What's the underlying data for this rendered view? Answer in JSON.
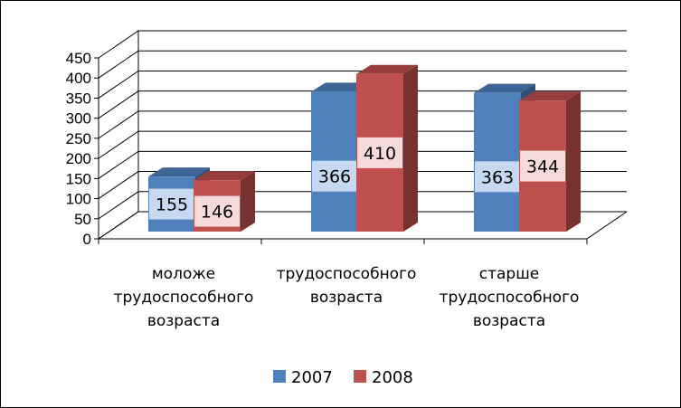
{
  "chart_data": {
    "type": "bar",
    "categories": [
      [
        "моложе",
        "трудоспособного",
        "возраста"
      ],
      [
        "трудоспособного",
        "возраста"
      ],
      [
        "старше",
        "трудоспособного",
        "возраста"
      ]
    ],
    "series": [
      {
        "name": "2007",
        "values": [
          155,
          366,
          363
        ],
        "color": "#4f81bd"
      },
      {
        "name": "2008",
        "values": [
          146,
          410,
          344
        ],
        "color": "#c0504d"
      }
    ],
    "ylim": [
      0,
      450
    ],
    "yticks": [
      0,
      50,
      100,
      150,
      200,
      250,
      300,
      350,
      400,
      450
    ],
    "grid": true,
    "legend": "bottom",
    "style": "3d-clustered-column"
  }
}
